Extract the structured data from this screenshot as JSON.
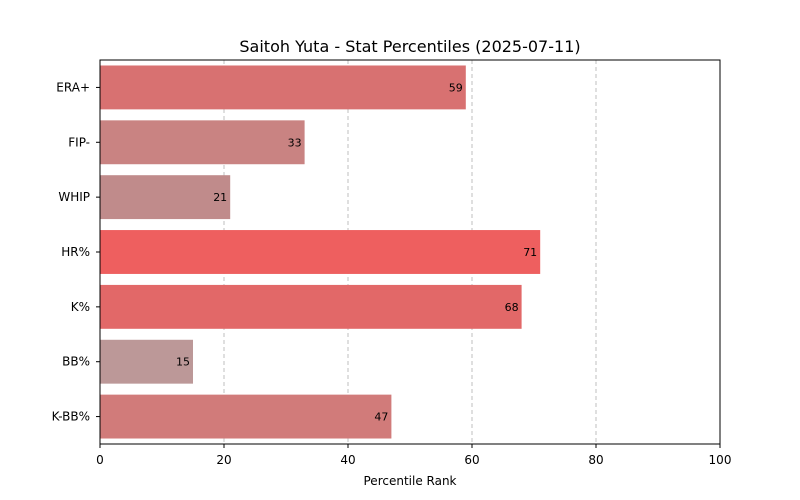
{
  "chart_data": {
    "type": "bar",
    "orientation": "horizontal",
    "title": "Saitoh Yuta - Stat Percentiles (2025-07-11)",
    "xlabel": "Percentile Rank",
    "ylabel": "",
    "xlim": [
      0,
      100
    ],
    "xticks": [
      "0",
      "20",
      "40",
      "60",
      "80",
      "100"
    ],
    "grid": "x-dashed",
    "categories": [
      "ERA+",
      "FIP-",
      "WHIP",
      "HR%",
      "K%",
      "BB%",
      "K-BB%"
    ],
    "values": [
      59,
      33,
      21,
      71,
      68,
      15,
      47
    ],
    "colors": [
      "#d87171",
      "#c98382",
      "#c08b8b",
      "#ee5f5f",
      "#e26868",
      "#bc9898",
      "#d17b7a"
    ]
  }
}
